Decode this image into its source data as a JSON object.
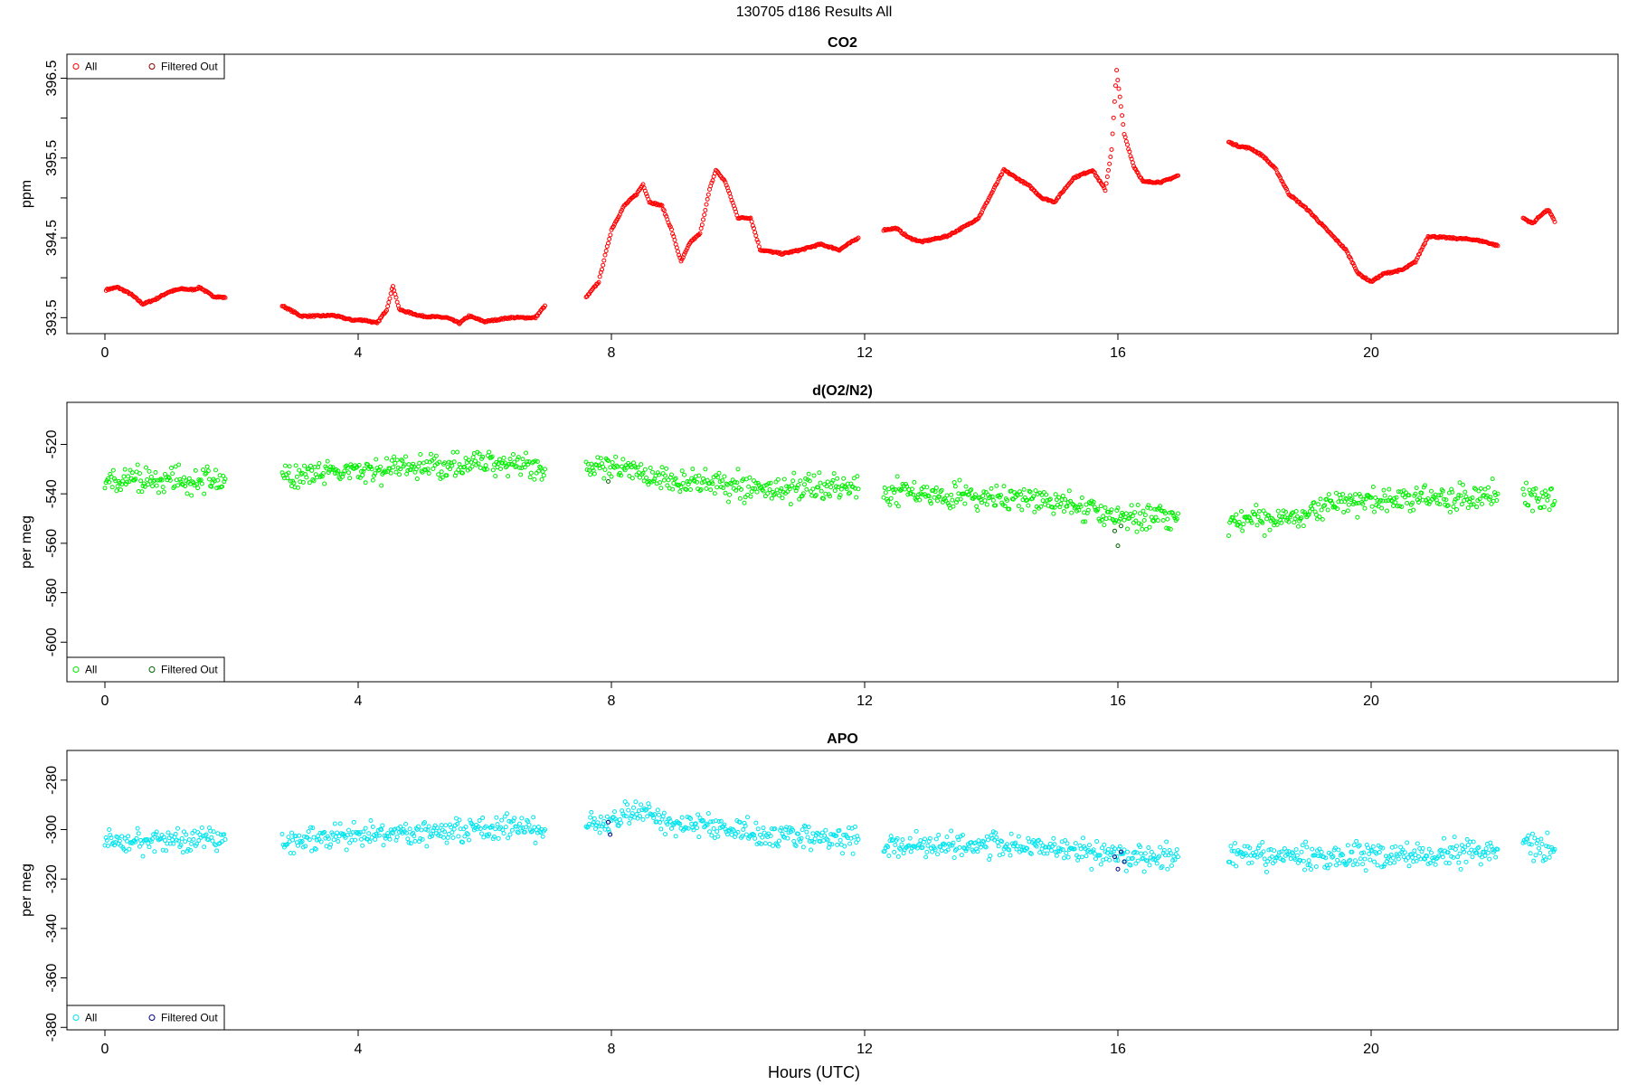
{
  "figure_title": "130705   d186   Results All",
  "xlabel": "Hours (UTC)",
  "colors": {
    "co2": "#ff0000",
    "o2n2": "#00ee00",
    "apo": "#00e5ee",
    "filtered": "#000080",
    "filtered_green": "#006400"
  },
  "chart_data": [
    {
      "type": "scatter",
      "title": "CO2",
      "ylabel": "ppm",
      "xlim": [
        -0.6,
        23.9
      ],
      "ylim": [
        393.3,
        396.8
      ],
      "xticks": [
        0,
        4,
        8,
        12,
        16,
        20
      ],
      "yticks": [
        393.5,
        394.5,
        395.5,
        396.5
      ],
      "yminor": [
        394.0,
        395.0,
        396.0
      ],
      "legend": {
        "position": "top-left",
        "entries": [
          "All",
          "Filtered Out"
        ]
      },
      "series": [
        {
          "name": "All",
          "color": "#ff0000",
          "style": "line",
          "segments": [
            [
              [
                0.02,
                393.85
              ],
              [
                0.2,
                393.88
              ],
              [
                0.4,
                393.8
              ],
              [
                0.6,
                393.67
              ],
              [
                0.8,
                393.73
              ],
              [
                1.0,
                393.82
              ],
              [
                1.2,
                393.86
              ],
              [
                1.4,
                393.85
              ],
              [
                1.5,
                393.88
              ],
              [
                1.7,
                393.77
              ],
              [
                1.9,
                393.75
              ]
            ],
            [
              [
                2.8,
                393.65
              ],
              [
                3.1,
                393.52
              ],
              [
                3.4,
                393.52
              ],
              [
                3.6,
                393.53
              ],
              [
                3.9,
                393.47
              ],
              [
                4.1,
                393.47
              ],
              [
                4.3,
                393.43
              ],
              [
                4.45,
                393.6
              ],
              [
                4.55,
                393.9
              ],
              [
                4.65,
                393.6
              ],
              [
                5.0,
                393.52
              ],
              [
                5.4,
                393.5
              ],
              [
                5.6,
                393.43
              ],
              [
                5.75,
                393.52
              ],
              [
                6.0,
                393.45
              ],
              [
                6.4,
                393.5
              ],
              [
                6.8,
                393.5
              ],
              [
                6.95,
                393.65
              ]
            ],
            [
              [
                7.6,
                393.75
              ],
              [
                7.8,
                393.95
              ],
              [
                8.0,
                394.6
              ],
              [
                8.2,
                394.9
              ],
              [
                8.4,
                395.05
              ],
              [
                8.5,
                395.17
              ],
              [
                8.6,
                394.95
              ],
              [
                8.8,
                394.9
              ],
              [
                8.95,
                394.6
              ],
              [
                9.1,
                394.2
              ],
              [
                9.25,
                394.45
              ],
              [
                9.4,
                394.55
              ],
              [
                9.55,
                395.1
              ],
              [
                9.65,
                395.35
              ],
              [
                9.8,
                395.2
              ],
              [
                10.0,
                394.75
              ],
              [
                10.2,
                394.75
              ],
              [
                10.35,
                394.35
              ],
              [
                10.7,
                394.3
              ],
              [
                11.0,
                394.35
              ],
              [
                11.3,
                394.42
              ],
              [
                11.6,
                394.35
              ],
              [
                11.9,
                394.5
              ]
            ],
            [
              [
                12.3,
                394.6
              ],
              [
                12.5,
                394.62
              ],
              [
                12.7,
                394.5
              ],
              [
                12.9,
                394.45
              ],
              [
                13.3,
                394.52
              ],
              [
                13.6,
                394.65
              ],
              [
                13.8,
                394.75
              ],
              [
                14.0,
                395.05
              ],
              [
                14.2,
                395.35
              ],
              [
                14.4,
                395.25
              ],
              [
                14.6,
                395.15
              ],
              [
                14.8,
                395.0
              ],
              [
                15.0,
                394.95
              ],
              [
                15.3,
                395.25
              ],
              [
                15.6,
                395.35
              ],
              [
                15.8,
                395.1
              ],
              [
                15.9,
                395.6
              ],
              [
                15.98,
                396.6
              ],
              [
                16.1,
                395.8
              ],
              [
                16.25,
                395.4
              ],
              [
                16.4,
                395.2
              ],
              [
                16.7,
                395.2
              ],
              [
                16.95,
                395.28
              ]
            ],
            [
              [
                17.75,
                395.7
              ],
              [
                17.9,
                395.65
              ],
              [
                18.1,
                395.62
              ],
              [
                18.3,
                395.52
              ],
              [
                18.5,
                395.35
              ],
              [
                18.7,
                395.05
              ],
              [
                19.0,
                394.85
              ],
              [
                19.3,
                394.6
              ],
              [
                19.6,
                394.35
              ],
              [
                19.8,
                394.05
              ],
              [
                20.0,
                393.95
              ],
              [
                20.2,
                394.05
              ],
              [
                20.5,
                394.1
              ],
              [
                20.7,
                394.2
              ],
              [
                20.9,
                394.52
              ],
              [
                21.2,
                394.5
              ],
              [
                21.6,
                394.48
              ],
              [
                21.8,
                394.45
              ],
              [
                22.0,
                394.4
              ]
            ],
            [
              [
                22.4,
                394.75
              ],
              [
                22.55,
                394.68
              ],
              [
                22.7,
                394.8
              ],
              [
                22.8,
                394.85
              ],
              [
                22.9,
                394.7
              ]
            ]
          ]
        }
      ]
    },
    {
      "type": "scatter",
      "title": "d(O2/N2)",
      "ylabel": "per meg",
      "xlim": [
        -0.6,
        23.9
      ],
      "ylim": [
        -616,
        -503
      ],
      "xticks": [
        0,
        4,
        8,
        12,
        16,
        20
      ],
      "yticks": [
        -520,
        -540,
        -560,
        -580,
        -600
      ],
      "legend": {
        "position": "bottom-left",
        "entries": [
          "All",
          "Filtered Out"
        ]
      },
      "series": [
        {
          "name": "All",
          "color": "#00ee00",
          "style": "scatter",
          "segments": [
            [
              [
                0.0,
                -536
              ],
              [
                0.5,
                -534
              ],
              [
                1.0,
                -535
              ],
              [
                1.5,
                -534
              ],
              [
                1.9,
                -534
              ]
            ],
            [
              [
                2.8,
                -534
              ],
              [
                3.5,
                -532
              ],
              [
                4.5,
                -530
              ],
              [
                5.5,
                -528
              ],
              [
                6.5,
                -527
              ],
              [
                6.95,
                -530
              ]
            ],
            [
              [
                7.6,
                -530
              ],
              [
                8.0,
                -530
              ],
              [
                8.5,
                -532
              ],
              [
                9.5,
                -536
              ],
              [
                10.5,
                -538
              ],
              [
                11.5,
                -537
              ],
              [
                11.9,
                -538
              ]
            ],
            [
              [
                12.3,
                -538
              ],
              [
                13.0,
                -540
              ],
              [
                14.0,
                -542
              ],
              [
                15.0,
                -543
              ],
              [
                15.8,
                -548
              ],
              [
                16.2,
                -550
              ],
              [
                16.95,
                -548
              ]
            ],
            [
              [
                17.75,
                -552
              ],
              [
                18.5,
                -550
              ],
              [
                19.5,
                -544
              ],
              [
                20.5,
                -542
              ],
              [
                21.5,
                -542
              ],
              [
                22.0,
                -540
              ]
            ],
            [
              [
                22.4,
                -540
              ],
              [
                22.9,
                -543
              ]
            ]
          ]
        },
        {
          "name": "Filtered Out",
          "color": "#006400",
          "style": "points",
          "segments": [
            [
              [
                7.95,
                -535
              ],
              [
                15.95,
                -555
              ],
              [
                16.0,
                -561
              ],
              [
                16.05,
                -553
              ]
            ]
          ]
        }
      ]
    },
    {
      "type": "scatter",
      "title": "APO",
      "ylabel": "per meg",
      "xlim": [
        -0.6,
        23.9
      ],
      "ylim": [
        -381,
        -268
      ],
      "xticks": [
        0,
        4,
        8,
        12,
        16,
        20
      ],
      "yticks": [
        -280,
        -300,
        -320,
        -340,
        -360,
        -380
      ],
      "legend": {
        "position": "bottom-left",
        "entries": [
          "All",
          "Filtered Out"
        ]
      },
      "series": [
        {
          "name": "All",
          "color": "#00e5ee",
          "style": "scatter",
          "segments": [
            [
              [
                0.0,
                -305
              ],
              [
                0.5,
                -304
              ],
              [
                1.0,
                -305
              ],
              [
                1.5,
                -303
              ],
              [
                1.9,
                -304
              ]
            ],
            [
              [
                2.8,
                -305
              ],
              [
                3.5,
                -304
              ],
              [
                4.5,
                -302
              ],
              [
                5.5,
                -300
              ],
              [
                6.5,
                -299
              ],
              [
                6.95,
                -300
              ]
            ],
            [
              [
                7.6,
                -298
              ],
              [
                8.0,
                -297
              ],
              [
                8.5,
                -292
              ],
              [
                9.0,
                -298
              ],
              [
                9.5,
                -298
              ],
              [
                10.5,
                -302
              ],
              [
                11.5,
                -304
              ],
              [
                11.9,
                -304
              ]
            ],
            [
              [
                12.3,
                -306
              ],
              [
                13.0,
                -306
              ],
              [
                14.0,
                -306
              ],
              [
                15.0,
                -307
              ],
              [
                15.8,
                -310
              ],
              [
                16.2,
                -311
              ],
              [
                16.95,
                -311
              ]
            ],
            [
              [
                17.75,
                -311
              ],
              [
                18.5,
                -311
              ],
              [
                19.5,
                -311
              ],
              [
                20.5,
                -310
              ],
              [
                21.5,
                -309
              ],
              [
                22.0,
                -308
              ]
            ],
            [
              [
                22.4,
                -305
              ],
              [
                22.9,
                -308
              ]
            ]
          ]
        },
        {
          "name": "Filtered Out",
          "color": "#000080",
          "style": "points",
          "segments": [
            [
              [
                7.95,
                -297
              ],
              [
                7.98,
                -302
              ],
              [
                15.95,
                -311
              ],
              [
                16.0,
                -316
              ],
              [
                16.05,
                -309
              ],
              [
                16.1,
                -313
              ]
            ]
          ]
        }
      ]
    }
  ]
}
